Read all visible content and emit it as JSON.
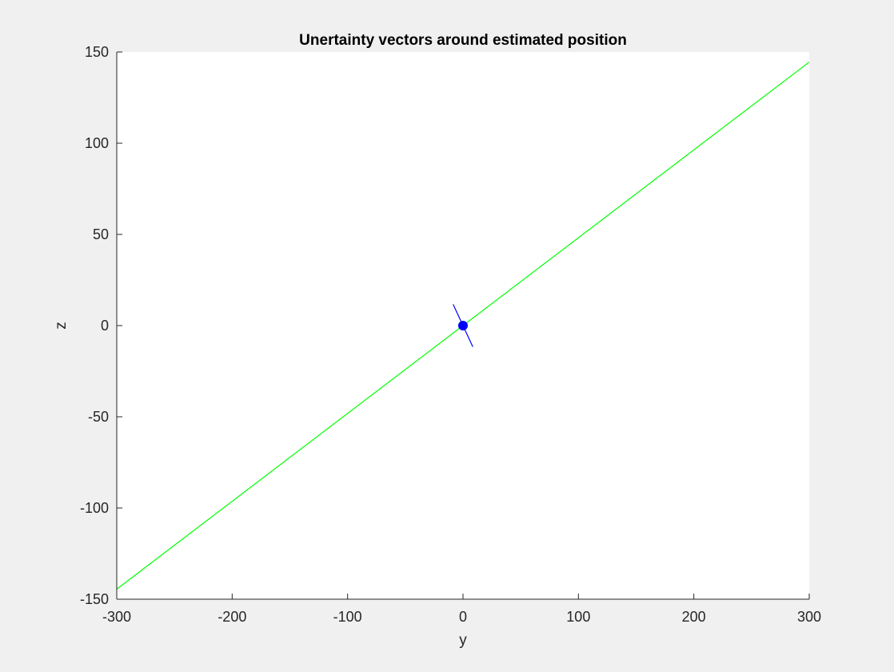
{
  "chart_data": {
    "type": "line",
    "title": "Unertainty vectors around estimated position",
    "xlabel": "y",
    "ylabel": "z",
    "xlim": [
      -300,
      300
    ],
    "ylim": [
      -150,
      150
    ],
    "xticks": [
      -300,
      -200,
      -100,
      0,
      100,
      200,
      300
    ],
    "yticks": [
      -150,
      -100,
      -50,
      0,
      50,
      100,
      150
    ],
    "xtick_labels": [
      "-300",
      "-200",
      "-100",
      "0",
      "100",
      "200",
      "300"
    ],
    "ytick_labels": [
      "-150",
      "-100",
      "-50",
      "0",
      "50",
      "100",
      "150"
    ],
    "grid": false,
    "series": [
      {
        "color": "#00ff00",
        "style": "line",
        "x": [
          -300,
          300
        ],
        "y": [
          -144.5,
          144.5
        ]
      },
      {
        "color": "#0000ff",
        "style": "line",
        "x": [
          -8.5,
          8.5
        ],
        "y": [
          11.6,
          -11.6
        ]
      },
      {
        "color": "#0000ff",
        "style": "marker",
        "x": [
          0
        ],
        "y": [
          0
        ]
      }
    ]
  }
}
